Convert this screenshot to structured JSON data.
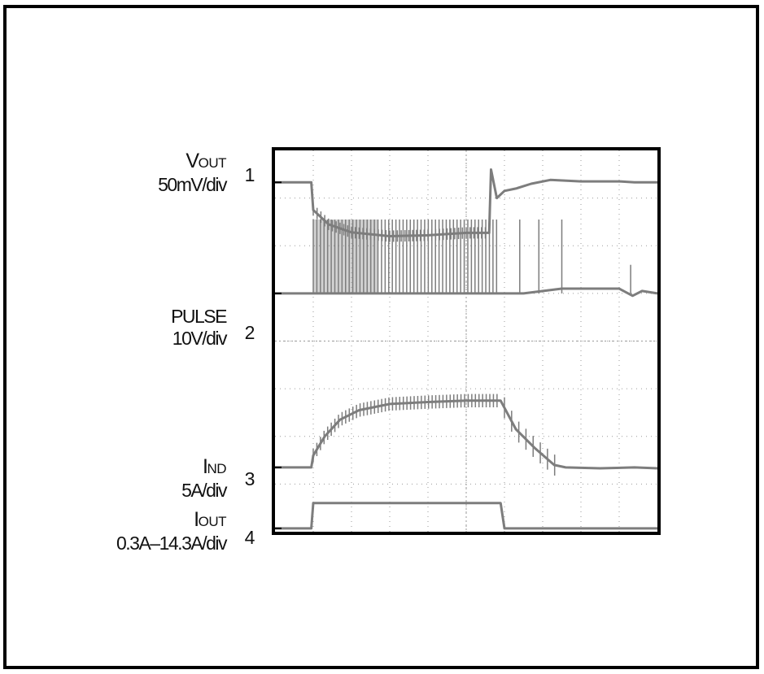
{
  "chart_data": {
    "type": "line",
    "title": "",
    "grid": true,
    "grid_divisions": {
      "x": 10,
      "y": 8
    },
    "x_range": [
      0,
      10
    ],
    "y_range": [
      0,
      8
    ],
    "colors": {
      "trace": "#7d7d7d",
      "frame": "#000000",
      "grid": "#9a9a9a"
    },
    "channels": [
      {
        "number": "1",
        "label_main": "V",
        "label_sub": "OUT",
        "scale": "50mV/div",
        "marker_level": 7.33
      },
      {
        "number": "2",
        "label_main": "PULSE",
        "label_sub": "",
        "scale": "10V/div",
        "marker_level": 5.0
      },
      {
        "number": "3",
        "label_main": "I",
        "label_sub": "ND",
        "scale": "5A/div",
        "marker_level": 1.35
      },
      {
        "number": "4",
        "label_main": "I",
        "label_sub": "OUT",
        "scale": "0.3A–14.3A/div",
        "marker_level": 0.07
      }
    ],
    "series": [
      {
        "name": "1",
        "points": [
          [
            0,
            7.33
          ],
          [
            0.95,
            7.33
          ],
          [
            1.0,
            6.75
          ],
          [
            1.4,
            6.45
          ],
          [
            2.0,
            6.28
          ],
          [
            3.0,
            6.2
          ],
          [
            4.0,
            6.22
          ],
          [
            5.0,
            6.27
          ],
          [
            5.6,
            6.27
          ],
          [
            5.65,
            7.6
          ],
          [
            5.8,
            7.0
          ],
          [
            6.0,
            7.15
          ],
          [
            6.3,
            7.2
          ],
          [
            6.7,
            7.3
          ],
          [
            7.2,
            7.38
          ],
          [
            8.0,
            7.35
          ],
          [
            9.0,
            7.35
          ],
          [
            9.4,
            7.33
          ],
          [
            10,
            7.33
          ]
        ]
      },
      {
        "name": "2",
        "points": [
          [
            0,
            5.0
          ],
          [
            0.95,
            5.0
          ],
          [
            1.0,
            5.0
          ],
          [
            5.9,
            5.0
          ],
          [
            6.5,
            5.0
          ],
          [
            7.5,
            5.1
          ],
          [
            8.0,
            5.1
          ],
          [
            9.0,
            5.1
          ],
          [
            9.35,
            4.95
          ],
          [
            9.6,
            5.05
          ],
          [
            10,
            5.0
          ]
        ]
      },
      {
        "name": "3",
        "points": [
          [
            0,
            1.35
          ],
          [
            0.95,
            1.35
          ],
          [
            1.0,
            1.6
          ],
          [
            1.3,
            2.0
          ],
          [
            1.7,
            2.35
          ],
          [
            2.2,
            2.55
          ],
          [
            3.0,
            2.68
          ],
          [
            4.0,
            2.72
          ],
          [
            5.0,
            2.75
          ],
          [
            5.9,
            2.75
          ],
          [
            6.0,
            2.6
          ],
          [
            6.3,
            2.15
          ],
          [
            6.8,
            1.75
          ],
          [
            7.3,
            1.4
          ],
          [
            7.6,
            1.35
          ],
          [
            8.5,
            1.33
          ],
          [
            9.4,
            1.35
          ],
          [
            10,
            1.33
          ]
        ]
      },
      {
        "name": "4",
        "points": [
          [
            0,
            0.07
          ],
          [
            0.95,
            0.07
          ],
          [
            1.0,
            0.6
          ],
          [
            5.9,
            0.6
          ],
          [
            6.0,
            0.07
          ],
          [
            10,
            0.07
          ]
        ]
      }
    ]
  }
}
